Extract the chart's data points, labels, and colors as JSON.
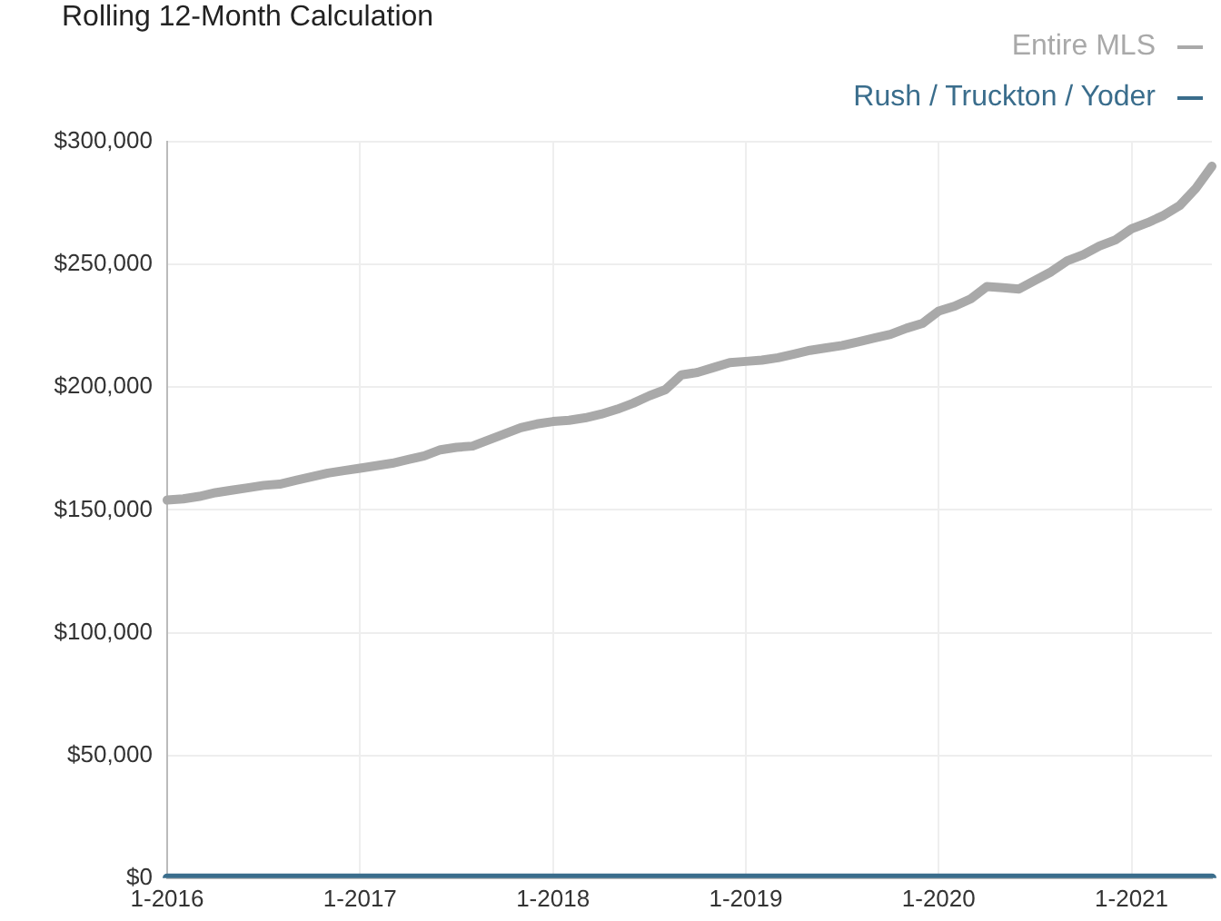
{
  "chart_data": {
    "type": "line",
    "title": "Rolling 12-Month Calculation",
    "categories": [
      "1-2016",
      null,
      null,
      null,
      null,
      null,
      null,
      null,
      null,
      null,
      null,
      null,
      "1-2017",
      null,
      null,
      null,
      null,
      null,
      null,
      null,
      null,
      null,
      null,
      null,
      "1-2018",
      null,
      null,
      null,
      null,
      null,
      null,
      null,
      null,
      null,
      null,
      null,
      "1-2019",
      null,
      null,
      null,
      null,
      null,
      null,
      null,
      null,
      null,
      null,
      null,
      "1-2020",
      null,
      null,
      null,
      null,
      null,
      null,
      null,
      null,
      null,
      null,
      null,
      "1-2021",
      null,
      null,
      null,
      null,
      null
    ],
    "series": [
      {
        "name": "Entire MLS",
        "color": "#a9a9a9",
        "values": [
          154000,
          154500,
          155500,
          157000,
          158000,
          159000,
          160000,
          160500,
          162000,
          163500,
          165000,
          166000,
          167000,
          168000,
          169000,
          170500,
          172000,
          174500,
          175500,
          176000,
          178500,
          181000,
          183500,
          185000,
          186000,
          186500,
          187500,
          189000,
          191000,
          193500,
          196500,
          199000,
          205000,
          206000,
          208000,
          210000,
          210500,
          211000,
          212000,
          213500,
          215000,
          216000,
          217000,
          218500,
          220000,
          221500,
          224000,
          226000,
          231000,
          233000,
          236000,
          241000,
          240500,
          240000,
          243500,
          247000,
          251500,
          254000,
          257500,
          260000,
          264500,
          267000,
          270000,
          274000,
          281000,
          290000
        ]
      },
      {
        "name": "Rush / Truckton / Yoder",
        "color": "#3a6d8c",
        "values": [
          0,
          0,
          0,
          0,
          0,
          0,
          0,
          0,
          0,
          0,
          0,
          0,
          0,
          0,
          0,
          0,
          0,
          0,
          0,
          0,
          0,
          0,
          0,
          0,
          0,
          0,
          0,
          0,
          0,
          0,
          0,
          0,
          0,
          0,
          0,
          0,
          0,
          0,
          0,
          0,
          0,
          0,
          0,
          0,
          0,
          0,
          0,
          0,
          0,
          0,
          0,
          0,
          0,
          0,
          0,
          0,
          0,
          0,
          0,
          0,
          0,
          0,
          0,
          0,
          0,
          0
        ]
      }
    ],
    "ylim": [
      0,
      300000
    ],
    "yticks": [
      {
        "value": 0,
        "label": "$0"
      },
      {
        "value": 50000,
        "label": "$50,000"
      },
      {
        "value": 100000,
        "label": "$100,000"
      },
      {
        "value": 150000,
        "label": "$150,000"
      },
      {
        "value": 200000,
        "label": "$200,000"
      },
      {
        "value": 250000,
        "label": "$250,000"
      },
      {
        "value": 300000,
        "label": "$300,000"
      }
    ],
    "grid": true,
    "legend": "top right",
    "marker": "none",
    "line_style": "solid"
  }
}
